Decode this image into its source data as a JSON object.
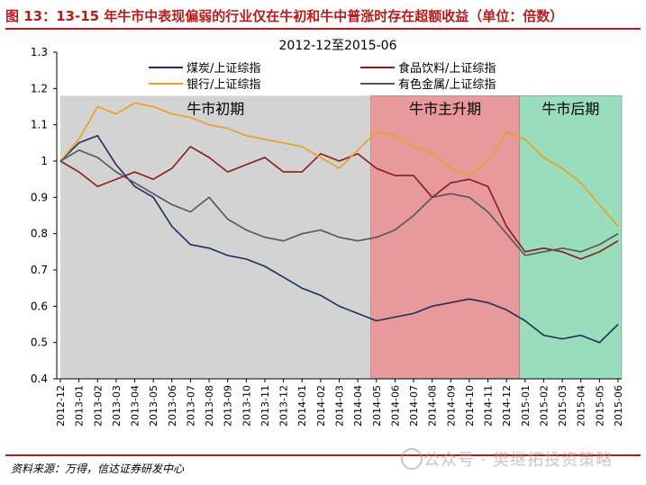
{
  "figure_title": "图 13：13-15 年牛市中表现偏弱的行业仅在牛初和牛中普涨时存在超额收益（单位：倍数）",
  "source_note": "资料来源：万得，信达证券研发中心",
  "watermark": "公众号 · 樊继拓投资策略",
  "chart_data": {
    "type": "line",
    "title": "2012-12至2015-06",
    "xlabel": "",
    "ylabel": "",
    "ylim": [
      0.4,
      1.3
    ],
    "yticks": [
      "0.4",
      "0.5",
      "0.6",
      "0.7",
      "0.8",
      "0.9",
      "1",
      "1.1",
      "1.2",
      "1.3"
    ],
    "categories": [
      "2012-12",
      "2013-01",
      "2013-02",
      "2013-03",
      "2013-04",
      "2013-05",
      "2013-06",
      "2013-07",
      "2013-08",
      "2013-09",
      "2013-10",
      "2013-11",
      "2013-12",
      "2014-01",
      "2014-02",
      "2014-03",
      "2014-04",
      "2014-05",
      "2014-06",
      "2014-07",
      "2014-08",
      "2014-09",
      "2014-10",
      "2014-11",
      "2014-12",
      "2015-01",
      "2015-02",
      "2015-03",
      "2015-04",
      "2015-05",
      "2015-06"
    ],
    "legend_position": "top",
    "grid": false,
    "phases": [
      {
        "label": "牛市初期",
        "from": 0,
        "to": 16.7,
        "color": "#d3d3d3"
      },
      {
        "label": "牛市主升期",
        "from": 16.7,
        "to": 24.7,
        "color": "#e8999b"
      },
      {
        "label": "牛市后期",
        "from": 24.7,
        "to": 30.6,
        "color": "#99ddbd"
      }
    ],
    "series": [
      {
        "name": "煤炭/上证综指",
        "color": "#1f2e5a",
        "values": [
          1.0,
          1.05,
          1.07,
          0.99,
          0.93,
          0.9,
          0.82,
          0.77,
          0.76,
          0.74,
          0.73,
          0.71,
          0.68,
          0.65,
          0.63,
          0.6,
          0.58,
          0.56,
          0.57,
          0.58,
          0.6,
          0.61,
          0.62,
          0.61,
          0.59,
          0.56,
          0.52,
          0.51,
          0.52,
          0.5,
          0.55
        ]
      },
      {
        "name": "食品饮料/上证综指",
        "color": "#8b1a1a",
        "values": [
          1.0,
          0.97,
          0.93,
          0.95,
          0.97,
          0.95,
          0.98,
          1.04,
          1.01,
          0.97,
          0.99,
          1.01,
          0.97,
          0.97,
          1.02,
          1.0,
          1.02,
          0.98,
          0.96,
          0.96,
          0.9,
          0.94,
          0.95,
          0.93,
          0.82,
          0.75,
          0.76,
          0.75,
          0.73,
          0.75,
          0.78
        ]
      },
      {
        "name": "银行/上证综指",
        "color": "#e8a020",
        "values": [
          1.0,
          1.06,
          1.15,
          1.13,
          1.16,
          1.15,
          1.13,
          1.12,
          1.1,
          1.09,
          1.07,
          1.06,
          1.05,
          1.04,
          1.01,
          0.98,
          1.03,
          1.08,
          1.07,
          1.04,
          1.02,
          0.98,
          0.96,
          1.0,
          1.08,
          1.06,
          1.01,
          0.98,
          0.94,
          0.88,
          0.82
        ]
      },
      {
        "name": "有色金属/上证综指",
        "color": "#555555",
        "values": [
          1.0,
          1.03,
          1.01,
          0.97,
          0.94,
          0.91,
          0.88,
          0.86,
          0.9,
          0.84,
          0.81,
          0.79,
          0.78,
          0.8,
          0.81,
          0.79,
          0.78,
          0.79,
          0.81,
          0.85,
          0.9,
          0.91,
          0.9,
          0.86,
          0.8,
          0.74,
          0.75,
          0.76,
          0.75,
          0.77,
          0.8
        ]
      }
    ]
  }
}
